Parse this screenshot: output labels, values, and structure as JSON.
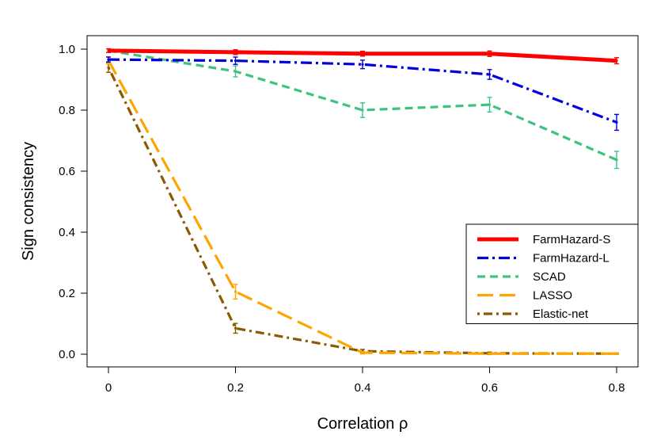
{
  "chart_data": {
    "type": "line",
    "title": "",
    "xlabel": "Correlation ρ",
    "ylabel": "Sign consistency",
    "x": [
      0,
      0.2,
      0.4,
      0.6,
      0.8
    ],
    "x_ticks": [
      "0",
      "0.2",
      "0.4",
      "0.6",
      "0.8"
    ],
    "y_ticks": [
      "0.0",
      "0.2",
      "0.4",
      "0.6",
      "0.8",
      "1.0"
    ],
    "xlim": [
      -0.035,
      0.835
    ],
    "ylim": [
      -0.04,
      1.04
    ],
    "grid": false,
    "legend_position": "right",
    "series": [
      {
        "name": "FarmHazard-S",
        "color": "#ff0000",
        "dash": "solid",
        "values": [
          0.995,
          0.99,
          0.985,
          0.985,
          0.962
        ],
        "errors": [
          0.006,
          0.008,
          0.008,
          0.009,
          0.01
        ]
      },
      {
        "name": "FarmHazard-L",
        "color": "#0000dd",
        "dash": "dashdot",
        "values": [
          0.966,
          0.962,
          0.95,
          0.917,
          0.76
        ],
        "errors": [
          0.008,
          0.012,
          0.014,
          0.016,
          0.026
        ]
      },
      {
        "name": "SCAD",
        "color": "#3cc47e",
        "dash": "dashed",
        "values": [
          0.995,
          0.927,
          0.8,
          0.818,
          0.637
        ],
        "errors": [
          0.006,
          0.018,
          0.024,
          0.024,
          0.028
        ]
      },
      {
        "name": "LASSO",
        "color": "#ffa500",
        "dash": "longdash",
        "values": [
          0.963,
          0.205,
          0.005,
          0.002,
          0.002
        ],
        "errors": [
          0.012,
          0.024,
          0.004,
          0.002,
          0.002
        ]
      },
      {
        "name": "Elastic-net",
        "color": "#8b5a00",
        "dash": "dotdash",
        "values": [
          0.94,
          0.085,
          0.01,
          0.003,
          0.002
        ],
        "errors": [
          0.016,
          0.016,
          0.006,
          0.004,
          0.002
        ]
      }
    ]
  }
}
